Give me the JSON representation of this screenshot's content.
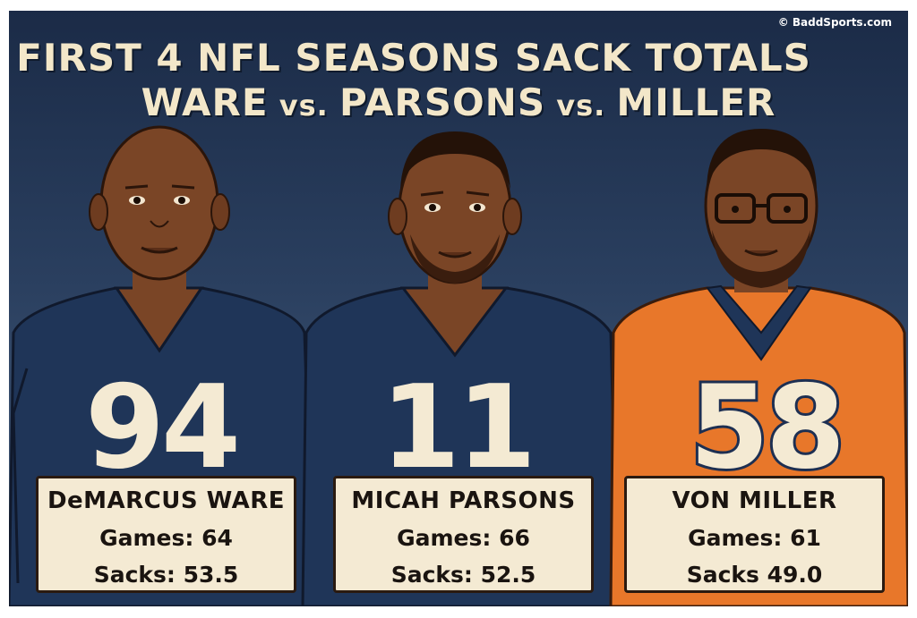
{
  "copyright": "© BaddSports.com",
  "title": {
    "line1": "FIRST 4 NFL SEASONS SACK TOTALS",
    "p1": "WARE",
    "vs1": " vs. ",
    "p2": "PARSONS",
    "vs2": " vs. ",
    "p3": "MILLER"
  },
  "players": [
    {
      "number": "94",
      "name": "DeMARCUS WARE",
      "games": "Games: 64",
      "sacks": "Sacks: 53.5",
      "jersey_color": "#1f3558"
    },
    {
      "number": "11",
      "name": "MICAH PARSONS",
      "games": "Games: 66",
      "sacks": "Sacks: 52.5",
      "jersey_color": "#1f3558"
    },
    {
      "number": "58",
      "name": "VON MILLER",
      "games": "Games: 61",
      "sacks": "Sacks 49.0",
      "jersey_color": "#e8772a"
    }
  ],
  "colors": {
    "background_top": "#1b2b47",
    "skin": "#7a4526",
    "card": "#f4ead3",
    "navy": "#1f3558",
    "orange": "#e8772a"
  }
}
